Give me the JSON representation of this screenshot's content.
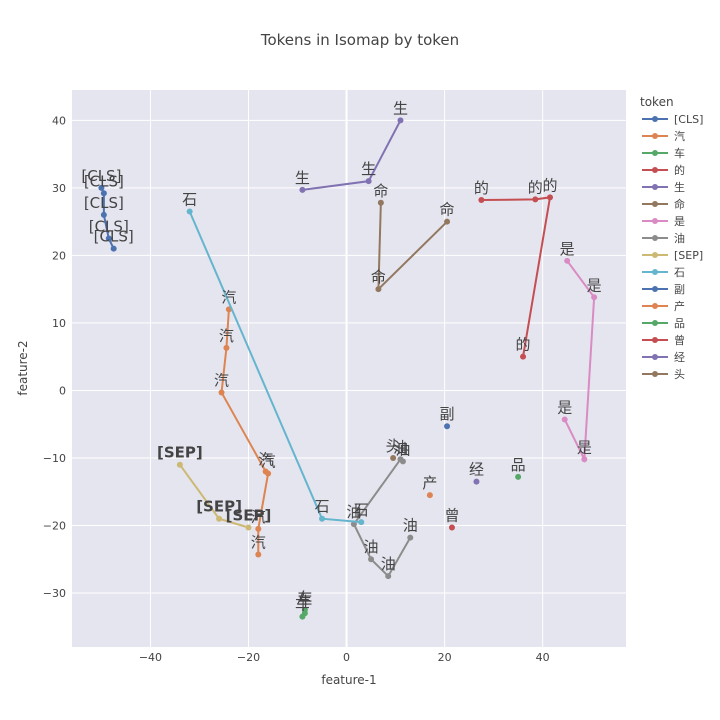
{
  "chart_data": {
    "type": "scatter",
    "title": "Tokens in Isomap by token",
    "xlabel": "feature-1",
    "ylabel": "feature-2",
    "xlim": [
      -56,
      57
    ],
    "ylim": [
      -38,
      44.5
    ],
    "xticks": [
      -40,
      -20,
      0,
      20,
      40
    ],
    "yticks": [
      -30,
      -20,
      -10,
      0,
      10,
      20,
      30,
      40
    ],
    "xtick_labels": [
      "−40",
      "−20",
      "0",
      "20",
      "40"
    ],
    "ytick_labels": [
      "−30",
      "−20",
      "−10",
      "0",
      "10",
      "20",
      "30",
      "40"
    ],
    "grid": true,
    "legend_title": "token",
    "legend_position": "right",
    "series": [
      {
        "name": "[CLS]",
        "color": "#4c72b0",
        "bold_labels": false,
        "points": [
          {
            "x": -50,
            "y": 30,
            "label": "[CLS]"
          },
          {
            "x": -49.5,
            "y": 29.2,
            "label": "[CLS]"
          },
          {
            "x": -49.5,
            "y": 26,
            "label": "[CLS]"
          },
          {
            "x": -48.5,
            "y": 22.5,
            "label": "[CLS]"
          },
          {
            "x": -47.5,
            "y": 21,
            "label": "[CLS]"
          }
        ]
      },
      {
        "name": "汽",
        "color": "#dd8452",
        "bold_labels": false,
        "points": [
          {
            "x": -24,
            "y": 12,
            "label": "汽"
          },
          {
            "x": -24.5,
            "y": 6.3,
            "label": "汽"
          },
          {
            "x": -25.5,
            "y": -0.3,
            "label": "汽"
          },
          {
            "x": -16.5,
            "y": -12,
            "label": "汽"
          },
          {
            "x": -16,
            "y": -12.3,
            "label": "汽"
          },
          {
            "x": -18,
            "y": -20.5,
            "label": "汽"
          },
          {
            "x": -18,
            "y": -24.3,
            "label": "汽"
          }
        ]
      },
      {
        "name": "车",
        "color": "#55a868",
        "bold_labels": false,
        "points": [
          {
            "x": -8.5,
            "y": -32.5,
            "label": "车"
          },
          {
            "x": -8.5,
            "y": -33,
            "label": "车"
          },
          {
            "x": -9,
            "y": -33.5,
            "label": "车"
          }
        ]
      },
      {
        "name": "的",
        "color": "#c44e52",
        "bold_labels": false,
        "points": [
          {
            "x": 27.5,
            "y": 28.2,
            "label": "的"
          },
          {
            "x": 38.5,
            "y": 28.3,
            "label": "的"
          },
          {
            "x": 41.5,
            "y": 28.6,
            "label": "的"
          },
          {
            "x": 36,
            "y": 5,
            "label": "的"
          }
        ]
      },
      {
        "name": "生",
        "color": "#8172b2",
        "bold_labels": false,
        "points": [
          {
            "x": 11,
            "y": 40,
            "label": "生"
          },
          {
            "x": 4.5,
            "y": 31,
            "label": "生"
          },
          {
            "x": -9,
            "y": 29.7,
            "label": "生"
          }
        ]
      },
      {
        "name": "命",
        "color": "#937860",
        "bold_labels": false,
        "points": [
          {
            "x": 7,
            "y": 27.8,
            "label": "命"
          },
          {
            "x": 6.5,
            "y": 15,
            "label": "命"
          },
          {
            "x": 20.5,
            "y": 25,
            "label": "命"
          }
        ]
      },
      {
        "name": "是",
        "color": "#da8bc3",
        "bold_labels": false,
        "points": [
          {
            "x": 45,
            "y": 19.2,
            "label": "是"
          },
          {
            "x": 50.5,
            "y": 13.8,
            "label": "是"
          },
          {
            "x": 48.5,
            "y": -10.2,
            "label": "是"
          },
          {
            "x": 44.5,
            "y": -4.3,
            "label": "是"
          }
        ]
      },
      {
        "name": "油",
        "color": "#8c8c8c",
        "bold_labels": false,
        "points": [
          {
            "x": 11.5,
            "y": -10.5,
            "label": "油"
          },
          {
            "x": 11,
            "y": -10.2,
            "label": "油"
          },
          {
            "x": 1.5,
            "y": -19.8,
            "label": "油"
          },
          {
            "x": 5,
            "y": -25,
            "label": "油"
          },
          {
            "x": 8.5,
            "y": -27.5,
            "label": "油"
          },
          {
            "x": 13,
            "y": -21.8,
            "label": "油"
          }
        ]
      },
      {
        "name": "[SEP]",
        "color": "#ccb974",
        "bold_labels": true,
        "points": [
          {
            "x": -34,
            "y": -11,
            "label": "[SEP]"
          },
          {
            "x": -26,
            "y": -19,
            "label": "[SEP]"
          },
          {
            "x": -20,
            "y": -20.3,
            "label": "[SEP]"
          }
        ]
      },
      {
        "name": "石",
        "color": "#64b5cd",
        "bold_labels": false,
        "points": [
          {
            "x": -32,
            "y": 26.5,
            "label": "石"
          },
          {
            "x": -5,
            "y": -19,
            "label": "石"
          },
          {
            "x": 3,
            "y": -19.5,
            "label": "石"
          }
        ]
      },
      {
        "name": "副",
        "color": "#4c72b0",
        "bold_labels": false,
        "points": [
          {
            "x": 20.5,
            "y": -5.3,
            "label": "副"
          }
        ]
      },
      {
        "name": "产",
        "color": "#dd8452",
        "bold_labels": false,
        "points": [
          {
            "x": 17,
            "y": -15.5,
            "label": "产"
          }
        ]
      },
      {
        "name": "品",
        "color": "#55a868",
        "bold_labels": false,
        "points": [
          {
            "x": 35,
            "y": -12.8,
            "label": "品"
          }
        ]
      },
      {
        "name": "曾",
        "color": "#c44e52",
        "bold_labels": false,
        "points": [
          {
            "x": 21.5,
            "y": -20.3,
            "label": "曾"
          }
        ]
      },
      {
        "name": "经",
        "color": "#8172b2",
        "bold_labels": false,
        "points": [
          {
            "x": 26.5,
            "y": -13.5,
            "label": "经"
          }
        ]
      },
      {
        "name": "头",
        "color": "#937860",
        "bold_labels": false,
        "points": [
          {
            "x": 9.5,
            "y": -10,
            "label": "头"
          }
        ]
      }
    ]
  }
}
